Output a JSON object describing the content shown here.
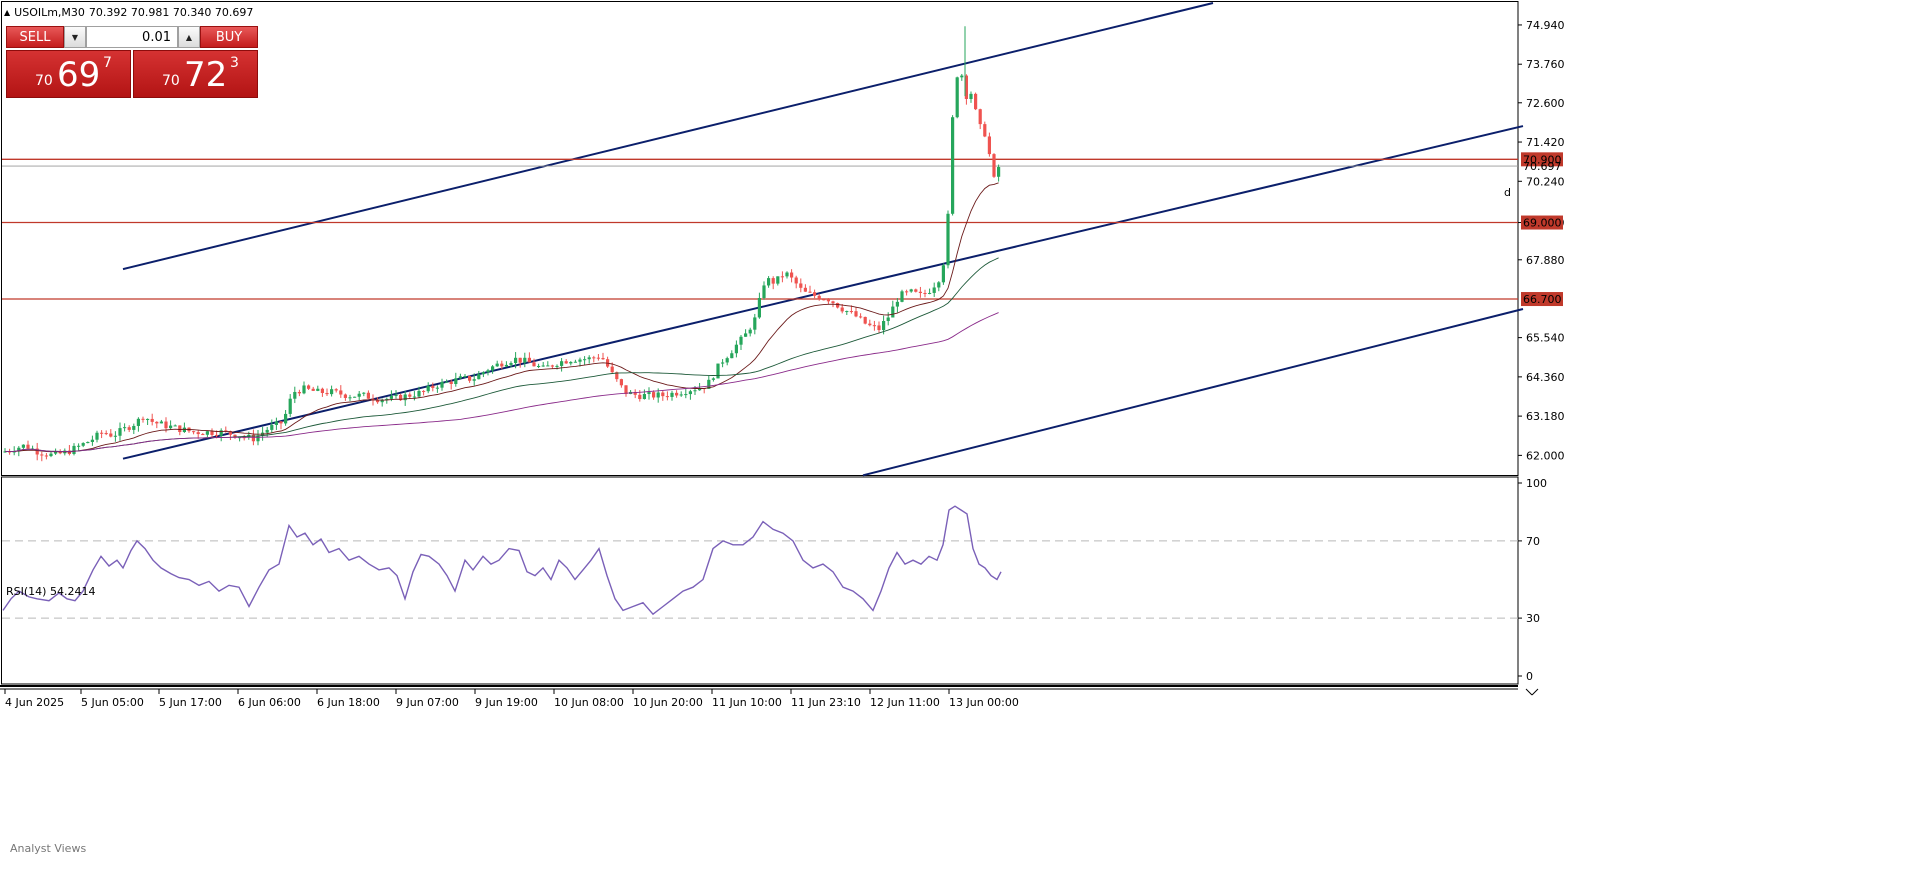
{
  "header": {
    "symbol_line": "USOILm,M30",
    "ohlc": "70.392 70.981 70.340 70.697"
  },
  "trade_panel": {
    "sell_label": "SELL",
    "buy_label": "BUY",
    "volume": "0.01",
    "sell_price": {
      "prefix": "70",
      "big": "69",
      "sup": "7"
    },
    "buy_price": {
      "prefix": "70",
      "big": "72",
      "sup": "3"
    }
  },
  "colors": {
    "bull": "#26a65b",
    "bear": "#ef5350",
    "channel": "#0b1f6b",
    "hline": "#c0392b",
    "ma_fast": "#6b1a1a",
    "ma_mid": "#1e5a3a",
    "ma_slow": "#8a2b8a",
    "rsi_line": "#7a60b8"
  },
  "chart_data": {
    "type": "candlestick",
    "symbol": "USOILm,M30",
    "y_ticks": [
      "74.940",
      "73.760",
      "72.600",
      "71.420",
      "70.240",
      "69.000",
      "67.880",
      "65.540",
      "64.360",
      "63.180",
      "62.000"
    ],
    "ylim": [
      61.5,
      75.6
    ],
    "x_ticks": [
      "4 Jun 2025",
      "5 Jun 05:00",
      "5 Jun 17:00",
      "6 Jun 06:00",
      "6 Jun 18:00",
      "9 Jun 07:00",
      "9 Jun 19:00",
      "10 Jun 08:00",
      "10 Jun 20:00",
      "11 Jun 10:00",
      "11 Jun 23:10",
      "12 Jun 11:00",
      "13 Jun 00:00"
    ],
    "current_price": "70.697",
    "horizontal_levels": [
      {
        "value": 70.9,
        "label": "70.900"
      },
      {
        "value": 69.0,
        "label": "69.000"
      },
      {
        "value": 66.7,
        "label": "66.700"
      }
    ],
    "close_path": [
      [
        0,
        62.1
      ],
      [
        10,
        62.2
      ],
      [
        22,
        62.3
      ],
      [
        36,
        62.1
      ],
      [
        50,
        62.0
      ],
      [
        64,
        62.1
      ],
      [
        78,
        62.3
      ],
      [
        90,
        62.5
      ],
      [
        100,
        62.7
      ],
      [
        110,
        62.6
      ],
      [
        122,
        62.8
      ],
      [
        134,
        63.0
      ],
      [
        140,
        63.2
      ],
      [
        150,
        63.0
      ],
      [
        162,
        62.9
      ],
      [
        176,
        62.8
      ],
      [
        190,
        62.7
      ],
      [
        205,
        62.7
      ],
      [
        220,
        62.7
      ],
      [
        235,
        62.6
      ],
      [
        250,
        62.5
      ],
      [
        265,
        62.8
      ],
      [
        280,
        63.0
      ],
      [
        290,
        63.9
      ],
      [
        300,
        64.0
      ],
      [
        315,
        63.9
      ],
      [
        330,
        63.9
      ],
      [
        345,
        63.8
      ],
      [
        360,
        63.8
      ],
      [
        375,
        63.7
      ],
      [
        390,
        63.7
      ],
      [
        405,
        63.8
      ],
      [
        420,
        63.9
      ],
      [
        432,
        64.1
      ],
      [
        445,
        64.2
      ],
      [
        458,
        64.3
      ],
      [
        470,
        64.3
      ],
      [
        485,
        64.6
      ],
      [
        500,
        64.8
      ],
      [
        512,
        64.9
      ],
      [
        525,
        64.8
      ],
      [
        540,
        64.6
      ],
      [
        555,
        64.8
      ],
      [
        570,
        64.9
      ],
      [
        585,
        64.9
      ],
      [
        598,
        65.0
      ],
      [
        610,
        64.4
      ],
      [
        622,
        63.9
      ],
      [
        635,
        63.8
      ],
      [
        648,
        63.8
      ],
      [
        660,
        63.8
      ],
      [
        675,
        63.9
      ],
      [
        690,
        64.0
      ],
      [
        704,
        64.1
      ],
      [
        718,
        64.8
      ],
      [
        730,
        65.2
      ],
      [
        742,
        65.6
      ],
      [
        752,
        66.1
      ],
      [
        762,
        67.3
      ],
      [
        772,
        67.2
      ],
      [
        782,
        67.5
      ],
      [
        792,
        67.2
      ],
      [
        800,
        66.9
      ],
      [
        812,
        66.8
      ],
      [
        826,
        66.7
      ],
      [
        840,
        66.4
      ],
      [
        852,
        66.2
      ],
      [
        865,
        65.9
      ],
      [
        876,
        65.8
      ],
      [
        886,
        66.2
      ],
      [
        896,
        66.8
      ],
      [
        908,
        66.9
      ],
      [
        918,
        66.8
      ],
      [
        928,
        67.0
      ],
      [
        938,
        67.4
      ],
      [
        944,
        68.4
      ],
      [
        948,
        71.5
      ],
      [
        953,
        73.4
      ],
      [
        958,
        73.6
      ],
      [
        962,
        72.8
      ],
      [
        968,
        72.9
      ],
      [
        976,
        71.9
      ],
      [
        984,
        71.6
      ],
      [
        990,
        70.2
      ],
      [
        996,
        70.7
      ]
    ],
    "indicator": {
      "name": "RSI(14)",
      "value": "54.2414",
      "ylim": [
        0,
        100
      ],
      "levels": [
        70,
        30
      ],
      "y_ticks": [
        "100",
        "70",
        "30",
        "0"
      ],
      "values": [
        [
          0,
          34
        ],
        [
          8,
          40
        ],
        [
          16,
          44
        ],
        [
          26,
          41
        ],
        [
          34,
          40
        ],
        [
          46,
          39
        ],
        [
          56,
          43
        ],
        [
          64,
          40
        ],
        [
          72,
          39
        ],
        [
          80,
          44
        ],
        [
          90,
          55
        ],
        [
          98,
          62
        ],
        [
          106,
          57
        ],
        [
          114,
          60
        ],
        [
          120,
          56
        ],
        [
          128,
          65
        ],
        [
          134,
          70
        ],
        [
          142,
          66
        ],
        [
          150,
          60
        ],
        [
          158,
          56
        ],
        [
          168,
          53
        ],
        [
          176,
          51
        ],
        [
          186,
          50
        ],
        [
          196,
          47
        ],
        [
          206,
          49
        ],
        [
          216,
          44
        ],
        [
          226,
          47
        ],
        [
          236,
          46
        ],
        [
          246,
          36
        ],
        [
          256,
          46
        ],
        [
          266,
          55
        ],
        [
          276,
          58
        ],
        [
          286,
          78
        ],
        [
          294,
          72
        ],
        [
          302,
          74
        ],
        [
          310,
          68
        ],
        [
          318,
          71
        ],
        [
          326,
          64
        ],
        [
          336,
          66
        ],
        [
          346,
          60
        ],
        [
          356,
          62
        ],
        [
          366,
          58
        ],
        [
          376,
          55
        ],
        [
          386,
          56
        ],
        [
          394,
          52
        ],
        [
          402,
          40
        ],
        [
          410,
          54
        ],
        [
          418,
          63
        ],
        [
          426,
          62
        ],
        [
          436,
          58
        ],
        [
          444,
          52
        ],
        [
          452,
          44
        ],
        [
          462,
          60
        ],
        [
          470,
          55
        ],
        [
          480,
          62
        ],
        [
          488,
          58
        ],
        [
          496,
          60
        ],
        [
          506,
          66
        ],
        [
          516,
          65
        ],
        [
          524,
          54
        ],
        [
          532,
          52
        ],
        [
          540,
          56
        ],
        [
          548,
          50
        ],
        [
          556,
          60
        ],
        [
          564,
          56
        ],
        [
          572,
          50
        ],
        [
          580,
          55
        ],
        [
          588,
          60
        ],
        [
          596,
          66
        ],
        [
          604,
          52
        ],
        [
          612,
          40
        ],
        [
          620,
          34
        ],
        [
          630,
          36
        ],
        [
          640,
          38
        ],
        [
          650,
          32
        ],
        [
          660,
          36
        ],
        [
          670,
          40
        ],
        [
          680,
          44
        ],
        [
          690,
          46
        ],
        [
          700,
          50
        ],
        [
          710,
          66
        ],
        [
          720,
          70
        ],
        [
          730,
          68
        ],
        [
          740,
          68
        ],
        [
          750,
          72
        ],
        [
          760,
          80
        ],
        [
          770,
          76
        ],
        [
          780,
          74
        ],
        [
          790,
          70
        ],
        [
          800,
          60
        ],
        [
          810,
          56
        ],
        [
          820,
          58
        ],
        [
          830,
          54
        ],
        [
          840,
          46
        ],
        [
          850,
          44
        ],
        [
          860,
          40
        ],
        [
          870,
          34
        ],
        [
          878,
          44
        ],
        [
          886,
          56
        ],
        [
          894,
          64
        ],
        [
          902,
          58
        ],
        [
          910,
          60
        ],
        [
          918,
          58
        ],
        [
          926,
          62
        ],
        [
          934,
          60
        ],
        [
          940,
          68
        ],
        [
          946,
          86
        ],
        [
          952,
          88
        ],
        [
          958,
          86
        ],
        [
          964,
          84
        ],
        [
          970,
          66
        ],
        [
          976,
          58
        ],
        [
          982,
          56
        ],
        [
          988,
          52
        ],
        [
          994,
          50
        ],
        [
          998,
          54
        ]
      ]
    }
  },
  "labels": {
    "analyst_views": "Analyst Views"
  }
}
